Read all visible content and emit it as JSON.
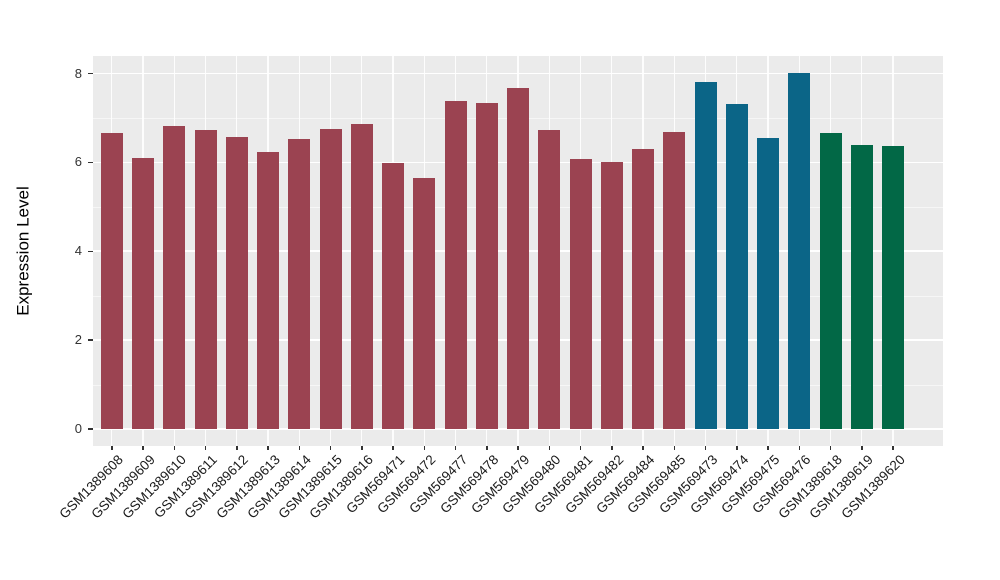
{
  "chart_data": {
    "type": "bar",
    "title": "",
    "xlabel": "",
    "ylabel": "Expression Level",
    "ylim": [
      0,
      8.4
    ],
    "yticks": [
      0,
      2,
      4,
      6,
      8
    ],
    "ytick_labels": [
      "0",
      "2",
      "4",
      "6",
      "8"
    ],
    "yticks_minor": [
      1,
      3,
      5,
      7
    ],
    "grid": "white gridlines on gray panel",
    "legend_position": "none",
    "categories": [
      "GSM1389608",
      "GSM1389609",
      "GSM1389610",
      "GSM1389611",
      "GSM1389612",
      "GSM1389613",
      "GSM1389614",
      "GSM1389615",
      "GSM1389616",
      "GSM569471",
      "GSM569472",
      "GSM569477",
      "GSM569478",
      "GSM569479",
      "GSM569480",
      "GSM569481",
      "GSM569482",
      "GSM569484",
      "GSM569485",
      "GSM569473",
      "GSM569474",
      "GSM569475",
      "GSM569476",
      "GSM1389618",
      "GSM1389619",
      "GSM1389620"
    ],
    "values": [
      6.67,
      6.09,
      6.83,
      6.72,
      6.58,
      6.23,
      6.52,
      6.75,
      6.86,
      5.98,
      5.66,
      7.39,
      7.33,
      7.68,
      6.74,
      6.07,
      6.0,
      6.31,
      6.68,
      7.82,
      7.31,
      6.55,
      8.02,
      6.66,
      6.4,
      6.38
    ],
    "bar_colors": [
      "#9B4351",
      "#9B4351",
      "#9B4351",
      "#9B4351",
      "#9B4351",
      "#9B4351",
      "#9B4351",
      "#9B4351",
      "#9B4351",
      "#9B4351",
      "#9B4351",
      "#9B4351",
      "#9B4351",
      "#9B4351",
      "#9B4351",
      "#9B4351",
      "#9B4351",
      "#9B4351",
      "#9B4351",
      "#0B6587",
      "#0B6587",
      "#0B6587",
      "#0B6587",
      "#026846",
      "#026846",
      "#026846"
    ],
    "palette": {
      "group_red": "#9B4351",
      "group_teal": "#0B6587",
      "group_green": "#026846",
      "panel_background": "#EBEBEB",
      "gridline": "#FFFFFF",
      "tick_text": "#333333",
      "axis_title_text": "#000000"
    }
  }
}
